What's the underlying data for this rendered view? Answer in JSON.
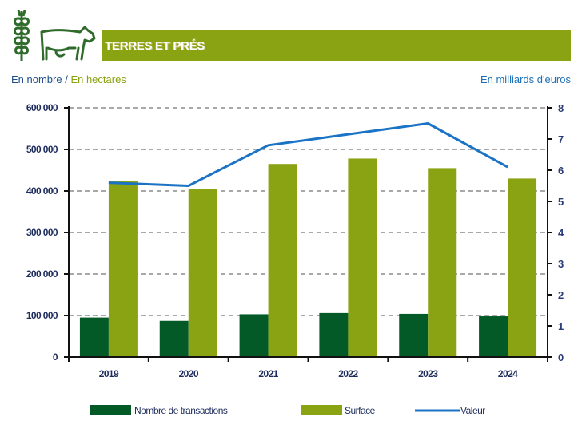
{
  "header": {
    "title": "TERRES ET PRÉS",
    "icons": [
      "wheat-icon",
      "cow-icon"
    ],
    "band_color": "#8aa312"
  },
  "units": {
    "left_part1": "En nombre",
    "separator": " / ",
    "left_part2": "En hectares",
    "right": "En milliards d'euros"
  },
  "chart_data": {
    "type": "bar",
    "title": "TERRES ET PRÉS",
    "categories": [
      "2019",
      "2020",
      "2021",
      "2022",
      "2023",
      "2024"
    ],
    "series": [
      {
        "name": "Nombre de transactions",
        "type": "bar",
        "axis": "left",
        "color": "#035a26",
        "values": [
          95000,
          87000,
          103000,
          106000,
          104000,
          98000
        ]
      },
      {
        "name": "Surface",
        "type": "bar",
        "axis": "left",
        "color": "#8aa312",
        "values": [
          425000,
          405000,
          465000,
          478000,
          455000,
          430000
        ]
      },
      {
        "name": "Valeur",
        "type": "line",
        "axis": "right",
        "color": "#1a73c4",
        "values": [
          5.6,
          5.5,
          6.8,
          7.15,
          7.5,
          6.1
        ]
      }
    ],
    "ylabel_left": "En nombre / En hectares",
    "ylabel_right": "En milliards d'euros",
    "ylim_left": [
      0,
      600000
    ],
    "ylim_right": [
      0,
      8
    ],
    "yticks_left": [
      "0",
      "100 000",
      "200 000",
      "300 000",
      "400 000",
      "500 000",
      "600 000"
    ],
    "yticks_right": [
      "0",
      "1",
      "2",
      "3",
      "4",
      "5",
      "6",
      "7",
      "8"
    ],
    "grid": true,
    "legend_position": "bottom",
    "legend": [
      "Nombre de transactions",
      "Surface",
      "Valeur"
    ]
  }
}
